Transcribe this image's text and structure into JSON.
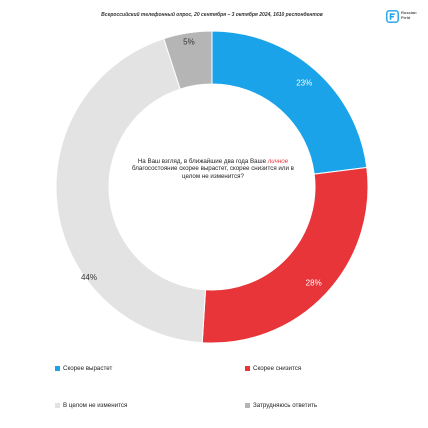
{
  "header": {
    "source": "Всероссийский телефонный опрос, 20 сентября – 3 октября 2024, 1610 респондентов",
    "logo_text_line1": "Russian",
    "logo_text_line2": "Field"
  },
  "colors": {
    "blue": "#1aa3e8",
    "red": "#e8353a",
    "light_gray": "#e3e3e3",
    "dark_gray": "#b5b5b5"
  },
  "chart_data": {
    "type": "pie",
    "question_before": "На Ваш взгляд, в ближайшие два года Ваше",
    "question_highlight": "личное",
    "question_after": "благосостояние скорее вырастет, скорее снизится или в целом не изменится?",
    "slices": [
      {
        "name": "Скорее вырастет",
        "value": 23,
        "label": "23%",
        "color": "#1aa3e8"
      },
      {
        "name": "Скорее снизится",
        "value": 28,
        "label": "28%",
        "color": "#e8353a"
      },
      {
        "name": "В целом не изменится",
        "value": 44,
        "label": "44%",
        "color": "#e3e3e3"
      },
      {
        "name": "Затрудняюсь ответить",
        "value": 5,
        "label": "5%",
        "color": "#b5b5b5"
      }
    ],
    "legend_placement": "bottom"
  }
}
